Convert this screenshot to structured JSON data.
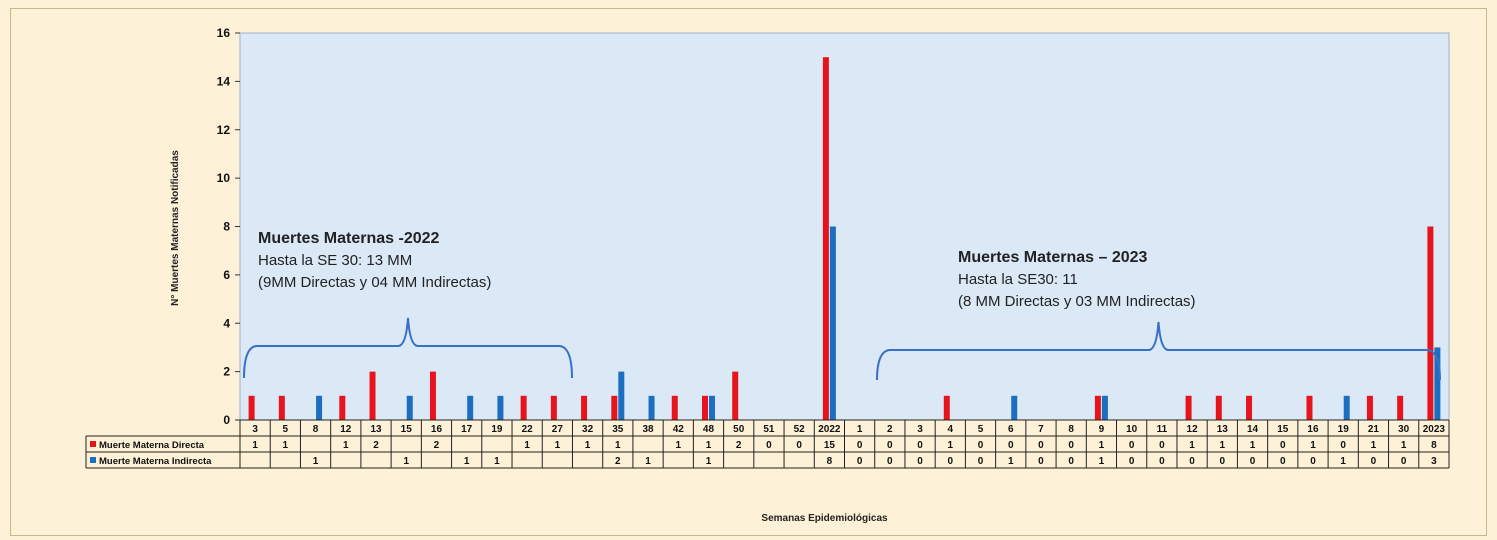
{
  "chart_data": {
    "type": "bar",
    "ylabel": "N° Muertes Maternas Notificadas",
    "xlabel": "Semanas Epidemiológicas",
    "ylim": [
      0,
      16
    ],
    "yticks": [
      0,
      2,
      4,
      6,
      8,
      10,
      12,
      14,
      16
    ],
    "grid": false,
    "categories": [
      "3",
      "5",
      "8",
      "12",
      "13",
      "15",
      "16",
      "17",
      "19",
      "22",
      "27",
      "32",
      "35",
      "38",
      "42",
      "48",
      "50",
      "51",
      "52",
      "2022",
      "1",
      "2",
      "3",
      "4",
      "5",
      "6",
      "7",
      "8",
      "9",
      "10",
      "11",
      "12",
      "13",
      "14",
      "15",
      "16",
      "19",
      "21",
      "30",
      "2023"
    ],
    "series": [
      {
        "name": "Muerte Materna Directa",
        "color": "#e8141c",
        "values": [
          1,
          1,
          0,
          1,
          2,
          0,
          2,
          0,
          0,
          1,
          1,
          1,
          1,
          0,
          1,
          1,
          2,
          0,
          0,
          15,
          0,
          0,
          0,
          1,
          0,
          0,
          0,
          0,
          1,
          0,
          0,
          1,
          1,
          1,
          0,
          1,
          0,
          1,
          1,
          8
        ],
        "labels": [
          "1",
          "1",
          "",
          "1",
          "2",
          "",
          "2",
          "",
          "",
          "1",
          "1",
          "1",
          "1",
          "",
          "1",
          "1",
          "2",
          "0",
          "0",
          "15",
          "0",
          "0",
          "0",
          "1",
          "0",
          "0",
          "0",
          "0",
          "1",
          "0",
          "0",
          "1",
          "1",
          "1",
          "0",
          "1",
          "0",
          "1",
          "1",
          "8"
        ]
      },
      {
        "name": "Muerte Materna Indirecta",
        "color": "#1c6fc0",
        "values": [
          0,
          0,
          1,
          0,
          0,
          1,
          0,
          1,
          1,
          0,
          0,
          0,
          2,
          1,
          0,
          1,
          0,
          0,
          0,
          8,
          0,
          0,
          0,
          0,
          0,
          1,
          0,
          0,
          1,
          0,
          0,
          0,
          0,
          0,
          0,
          0,
          1,
          0,
          0,
          3
        ],
        "labels": [
          "",
          "",
          "1",
          "",
          "",
          "1",
          "",
          "1",
          "1",
          "",
          "",
          "",
          "2",
          "1",
          "",
          "1",
          "",
          "",
          "",
          "8",
          "0",
          "0",
          "0",
          "0",
          "0",
          "1",
          "0",
          "0",
          "1",
          "0",
          "0",
          "0",
          "0",
          "0",
          "0",
          "0",
          "1",
          "0",
          "0",
          "3"
        ]
      }
    ],
    "annotations": [
      {
        "title": "Muertes Maternas -2022",
        "line1": "Hasta la SE 30: 13 MM",
        "line2": " (9MM Directas y 04 MM Indirectas)"
      },
      {
        "title": "Muertes Maternas – 2023",
        "line1": "Hasta la SE30: 11",
        "line2": " (8 MM Directas y 03 MM Indirectas)"
      }
    ]
  }
}
